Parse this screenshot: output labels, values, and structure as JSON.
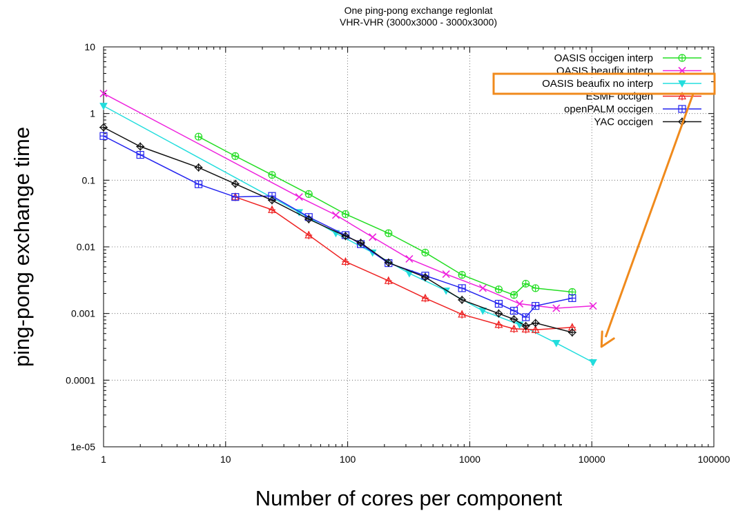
{
  "chart_data": {
    "type": "line",
    "title": "One ping-pong exchange reglonlat",
    "subtitle": "VHR-VHR (3000x3000 - 3000x3000)",
    "xlabel": "Number of cores per component",
    "ylabel": "ping-pong exchange time",
    "xscale": "log",
    "yscale": "log",
    "xlim": [
      1,
      100000
    ],
    "ylim": [
      1e-05,
      10
    ],
    "x_tick_labels": [
      "1",
      "10",
      "100",
      "1000",
      "10000",
      "100000"
    ],
    "y_tick_labels": [
      "1e-05",
      "0.0001",
      "0.001",
      "0.01",
      "0.1",
      "1",
      "10"
    ],
    "grid": true,
    "legend_position": "top-right",
    "annotation": {
      "highlighted_series": "OASIS beaufix no interp",
      "box_color": "#f08a1c",
      "arrow_target": {
        "x": 10000,
        "y": 0.00025
      }
    },
    "series": [
      {
        "name": "OASIS occigen interp",
        "color": "#22dd22",
        "marker": "circle-plus",
        "x": [
          6,
          12,
          24,
          48,
          96,
          216,
          432,
          864,
          1728,
          2304,
          2880,
          3456,
          6912
        ],
        "y": [
          0.45,
          0.23,
          0.12,
          0.062,
          0.031,
          0.016,
          0.0082,
          0.0038,
          0.0023,
          0.0019,
          0.0028,
          0.0024,
          0.0021
        ]
      },
      {
        "name": "OASIS beaufix interp",
        "color": "#ee22dd",
        "marker": "cross",
        "x": [
          1,
          40,
          80,
          160,
          320,
          640,
          1280,
          2560,
          5120,
          10240
        ],
        "y": [
          2.0,
          0.056,
          0.03,
          0.014,
          0.0066,
          0.0039,
          0.0024,
          0.0014,
          0.0012,
          0.0013
        ]
      },
      {
        "name": "OASIS beaufix no interp",
        "color": "#22dddd",
        "marker": "triangle-down",
        "x": [
          1,
          40,
          80,
          160,
          320,
          640,
          1280,
          2560,
          5120,
          10240
        ],
        "y": [
          1.3,
          0.033,
          0.016,
          0.0082,
          0.004,
          0.0022,
          0.0011,
          0.00068,
          0.00036,
          0.000185
        ]
      },
      {
        "name": "ESMF occigen",
        "color": "#ee2222",
        "marker": "triangle-up",
        "x": [
          12,
          24,
          48,
          96,
          216,
          432,
          864,
          1728,
          2304,
          2880,
          3456,
          6912
        ],
        "y": [
          0.056,
          0.036,
          0.015,
          0.006,
          0.0031,
          0.0017,
          0.00097,
          0.00068,
          0.00059,
          0.00058,
          0.00057,
          0.00062
        ]
      },
      {
        "name": "openPALM occigen",
        "color": "#2222ee",
        "marker": "square-plus",
        "x": [
          1,
          2,
          6,
          12,
          24,
          48,
          96,
          128,
          216,
          432,
          864,
          1728,
          2304,
          2880,
          3456,
          6912
        ],
        "y": [
          0.46,
          0.24,
          0.087,
          0.056,
          0.058,
          0.028,
          0.015,
          0.011,
          0.0057,
          0.0037,
          0.0024,
          0.0014,
          0.0011,
          0.00088,
          0.0013,
          0.0017
        ]
      },
      {
        "name": "YAC occigen",
        "color": "#111111",
        "marker": "diamond-plus",
        "x": [
          1,
          2,
          6,
          12,
          24,
          48,
          96,
          128,
          216,
          432,
          864,
          1728,
          2304,
          2880,
          3456,
          6912
        ],
        "y": [
          0.62,
          0.32,
          0.155,
          0.088,
          0.05,
          0.026,
          0.0145,
          0.0115,
          0.0058,
          0.0035,
          0.0016,
          0.001,
          0.00082,
          0.00065,
          0.00072,
          0.00052
        ]
      }
    ]
  }
}
